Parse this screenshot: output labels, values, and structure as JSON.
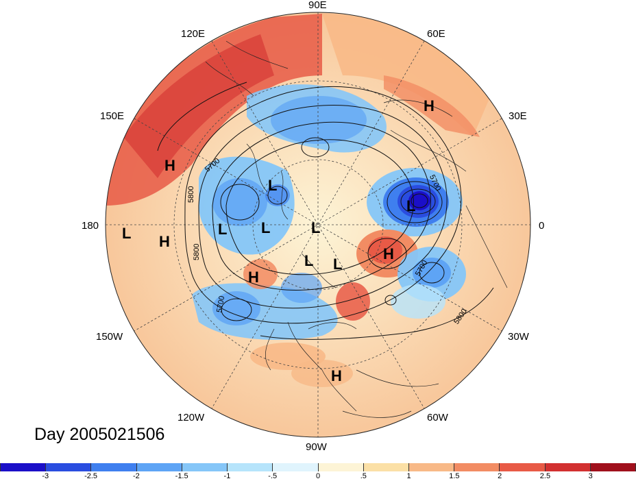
{
  "title": "Day 2005021506",
  "longitude_labels": [
    "90E",
    "60E",
    "30E",
    "0",
    "30W",
    "60W",
    "90W",
    "120W",
    "150W",
    "180",
    "150E",
    "120E"
  ],
  "contour_labels": [
    "5700",
    "5800",
    "5800",
    "5700",
    "5700",
    "5700",
    "5800"
  ],
  "pressure_markers": [
    "L",
    "L",
    "L",
    "L",
    "L",
    "L",
    "L",
    "L",
    "H",
    "H",
    "H",
    "H",
    "H",
    "H"
  ],
  "colorbar": {
    "ticks": [
      "-3",
      "-2.5",
      "-2",
      "-1.5",
      "-1",
      "-.5",
      "0",
      ".5",
      "1",
      "1.5",
      "2",
      "2.5",
      "3"
    ],
    "colors": [
      "#1b0fc8",
      "#2a4de0",
      "#3f7fef",
      "#5ea4f5",
      "#85c6f8",
      "#b6e4fb",
      "#e0f4fd",
      "#fdf4d6",
      "#fbe0a6",
      "#f8b987",
      "#f28c63",
      "#e85a46",
      "#d23030",
      "#a0101c"
    ]
  },
  "legend_colors": {
    "cold_strong": "#1b0fc8",
    "cold": "#5ea4f5",
    "cool": "#b6e4fb",
    "neutral": "#fdf4d6",
    "warm": "#f8b987",
    "hot": "#e85a46"
  }
}
